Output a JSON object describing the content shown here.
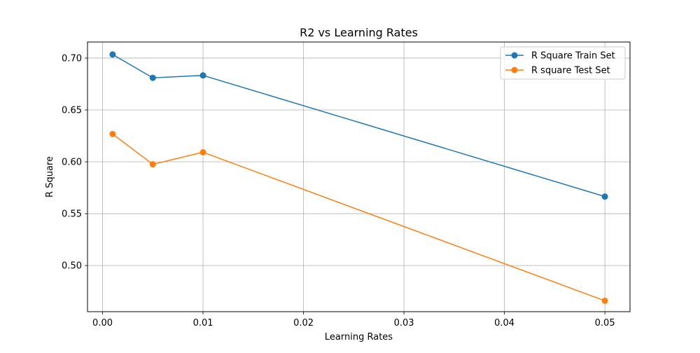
{
  "chart_data": {
    "type": "line",
    "title": "R2 vs Learning Rates",
    "xlabel": "Learning Rates",
    "ylabel": "R Square",
    "x": [
      0.001,
      0.005,
      0.01,
      0.05
    ],
    "series": [
      {
        "name": "R Square Train Set",
        "color": "#1f77b4",
        "values": [
          0.7035,
          0.681,
          0.6833,
          0.5665
        ]
      },
      {
        "name": "R square Test Set",
        "color": "#ff7f0e",
        "values": [
          0.6268,
          0.5976,
          0.6092,
          0.466
        ]
      }
    ],
    "xlim": [
      -0.0015,
      0.0525
    ],
    "ylim": [
      0.4555,
      0.7155
    ],
    "xticks": [
      0.0,
      0.01,
      0.02,
      0.03,
      0.04,
      0.05
    ],
    "xtick_labels": [
      "0.00",
      "0.01",
      "0.02",
      "0.03",
      "0.04",
      "0.05"
    ],
    "yticks": [
      0.5,
      0.55,
      0.6,
      0.65,
      0.7
    ],
    "ytick_labels": [
      "0.50",
      "0.55",
      "0.60",
      "0.65",
      "0.70"
    ],
    "grid": true,
    "legend_position": "top-right",
    "marker": "circle"
  }
}
